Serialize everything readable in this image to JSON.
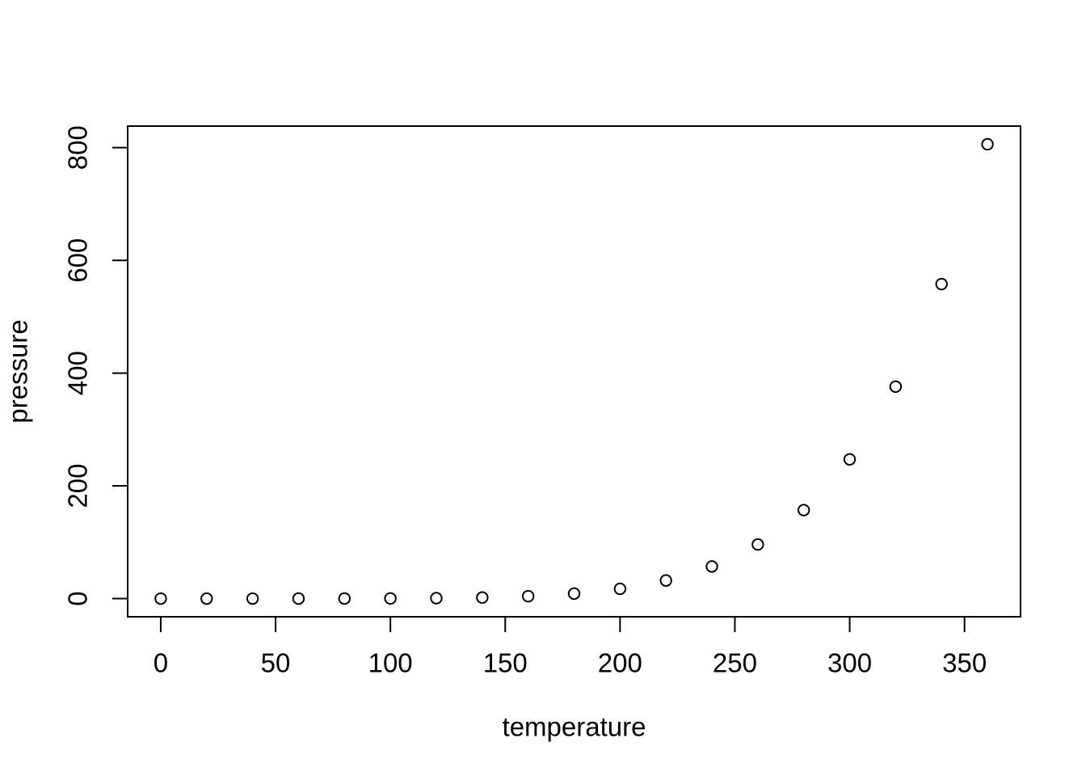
{
  "chart_data": {
    "type": "scatter",
    "title": "",
    "xlabel": "temperature",
    "ylabel": "pressure",
    "x": [
      0,
      20,
      40,
      60,
      80,
      100,
      120,
      140,
      160,
      180,
      200,
      220,
      240,
      260,
      280,
      300,
      320,
      340,
      360
    ],
    "y": [
      0.0002,
      0.0012,
      0.006,
      0.03,
      0.09,
      0.27,
      0.75,
      1.85,
      4.2,
      8.8,
      17.3,
      32.1,
      57,
      96,
      157,
      247,
      376,
      558,
      806
    ],
    "x_ticks": [
      0,
      50,
      100,
      150,
      200,
      250,
      300,
      350
    ],
    "y_ticks": [
      0,
      200,
      400,
      600,
      800
    ],
    "xlim": [
      -14.4,
      374.4
    ],
    "ylim": [
      -32.24,
      838.24
    ],
    "grid": false,
    "legend": "none",
    "marker": "open-circle",
    "colors": {
      "foreground": "#000000",
      "background": "#ffffff"
    }
  }
}
